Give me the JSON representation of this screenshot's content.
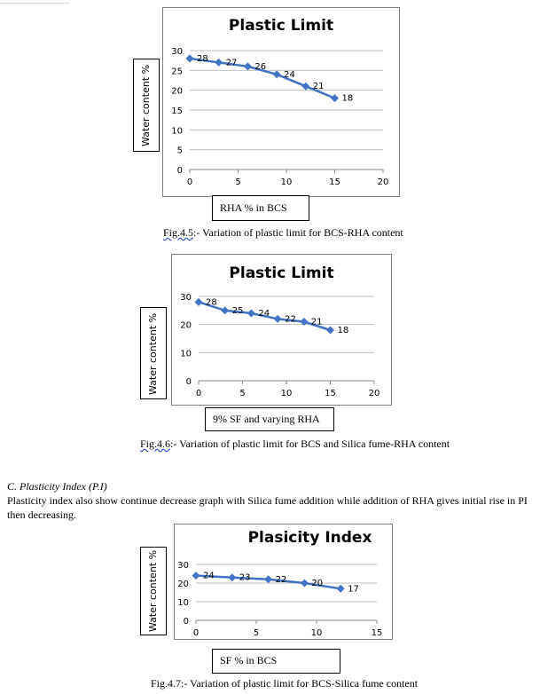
{
  "figures": [
    {
      "caption_prefix": "Fig.4.5",
      "caption_rest": ":- Variation of plastic limit for BCS-RHA content",
      "x_axis_box_text": "RHA % in BCS",
      "y_axis_box_text": "Water content %"
    },
    {
      "caption_prefix": "Fig.4.6",
      "caption_rest": ":- Variation of plastic limit for BCS and Silica fume-RHA content",
      "x_axis_box_text": "9% SF and varying RHA",
      "y_axis_box_text": "Water content %"
    },
    {
      "caption_prefix": "Fig.4.7",
      "caption_rest": ":- Variation of plastic limit for BCS-Silica fume content",
      "x_axis_box_text": "SF %  in BCS",
      "y_axis_box_text": "Water content %"
    }
  ],
  "section": {
    "heading": "C.   Plasticity Index (P.I)",
    "body": "Plasticity index also show continue decrease graph with Silica fume addition while addition of RHA gives initial rise in PI then decreasing."
  },
  "chart_data": [
    {
      "type": "line",
      "title": "Plastic Limit",
      "x": [
        0,
        3,
        6,
        9,
        12,
        15
      ],
      "values": [
        28,
        27,
        26,
        24,
        21,
        18
      ],
      "data_labels": [
        "28",
        "27",
        "26",
        "24",
        "21",
        "18"
      ],
      "xlim": [
        0,
        20
      ],
      "ylim": [
        0,
        30
      ],
      "x_ticks": [
        "0",
        "5",
        "10",
        "15",
        "20"
      ],
      "y_ticks": [
        "0",
        "5",
        "10",
        "15",
        "20",
        "25",
        "30"
      ],
      "grid": true,
      "color": "#4472c4"
    },
    {
      "type": "line",
      "title": "Plastic Limit",
      "x": [
        0,
        3,
        6,
        9,
        12,
        15
      ],
      "values": [
        28,
        25,
        24,
        22,
        21,
        18
      ],
      "data_labels": [
        "28",
        "25",
        "24",
        "22",
        "21",
        "18"
      ],
      "xlim": [
        0,
        20
      ],
      "ylim": [
        0,
        30
      ],
      "x_ticks": [
        "0",
        "5",
        "10",
        "15",
        "20"
      ],
      "y_ticks": [
        "0",
        "10",
        "20",
        "30"
      ],
      "grid": true,
      "color": "#4472c4"
    },
    {
      "type": "line",
      "title": "Plasicity Index",
      "x": [
        0,
        3,
        6,
        9,
        12
      ],
      "values": [
        24,
        23,
        22,
        20,
        17
      ],
      "data_labels": [
        "24",
        "23",
        "22",
        "20",
        "17"
      ],
      "xlim": [
        0,
        15
      ],
      "ylim": [
        0,
        30
      ],
      "x_ticks": [
        "0",
        "5",
        "10",
        "15"
      ],
      "y_ticks": [
        "0",
        "10",
        "20",
        "30"
      ],
      "grid": true,
      "color": "#4472c4"
    }
  ]
}
